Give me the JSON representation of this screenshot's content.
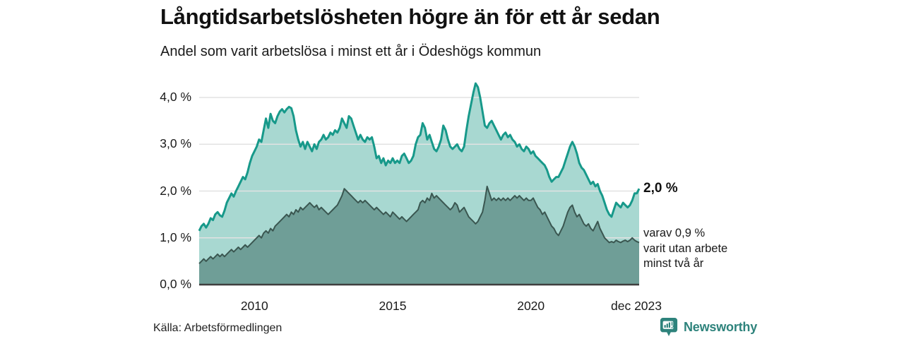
{
  "header": {
    "title": "Långtidsarbetslösheten högre än för ett år sedan",
    "subtitle": "Andel som varit arbetslösa i minst ett år i Ödeshögs kommun"
  },
  "annotations": {
    "latest_total": "2,0 %",
    "secondary_note": "varav 0,9 %\nvarit utan arbete\nminst två år"
  },
  "footer": {
    "source": "Källa: Arbetsförmedlingen",
    "brand": "Newsworthy"
  },
  "colors": {
    "series1_line": "#17998a",
    "series1_fill": "#a8d8d1",
    "series2_line": "#3a5650",
    "series2_fill": "#6f9e97",
    "grid": "#e2e2e2",
    "baseline": "#3f3f3f",
    "brand_teal": "#2e837c"
  },
  "chart_data": {
    "type": "area",
    "title": "Långtidsarbetslösheten högre än för ett år sedan",
    "subtitle": "Andel som varit arbetslösa i minst ett år i Ödeshögs kommun",
    "xlabel": "",
    "ylabel": "",
    "grid": true,
    "legend": "none",
    "x_start_year": 2008,
    "x_end_label": "dec 2023",
    "points_per_year": 12,
    "ylim": [
      0,
      4.5
    ],
    "y_ticks": [
      {
        "label": "0,0 %",
        "value": 0
      },
      {
        "label": "1,0 %",
        "value": 1
      },
      {
        "label": "2,0 %",
        "value": 2
      },
      {
        "label": "3,0 %",
        "value": 3
      },
      {
        "label": "4,0 %",
        "value": 4
      }
    ],
    "x_ticks": [
      {
        "label": "2010",
        "year": 2010.0
      },
      {
        "label": "2015",
        "year": 2015.0
      },
      {
        "label": "2020",
        "year": 2020.0
      },
      {
        "label": "dec 2023",
        "year": 2023.917
      }
    ],
    "series": [
      {
        "name": "Arbetslösa minst ett år",
        "end_label": "2,0 %",
        "color": "#17998a",
        "fill": "#a8d8d1",
        "line_width": 3,
        "values": [
          1.15,
          1.25,
          1.3,
          1.22,
          1.3,
          1.42,
          1.38,
          1.5,
          1.55,
          1.48,
          1.45,
          1.58,
          1.75,
          1.85,
          1.95,
          1.88,
          2.0,
          2.1,
          2.2,
          2.3,
          2.25,
          2.4,
          2.6,
          2.75,
          2.85,
          2.95,
          3.1,
          3.05,
          3.3,
          3.55,
          3.35,
          3.65,
          3.5,
          3.45,
          3.6,
          3.7,
          3.75,
          3.68,
          3.75,
          3.8,
          3.77,
          3.6,
          3.3,
          3.1,
          2.95,
          3.05,
          2.9,
          3.05,
          2.95,
          2.85,
          3.0,
          2.9,
          3.05,
          3.1,
          3.2,
          3.1,
          3.15,
          3.25,
          3.2,
          3.3,
          3.25,
          3.35,
          3.55,
          3.45,
          3.35,
          3.6,
          3.55,
          3.4,
          3.25,
          3.1,
          3.2,
          3.1,
          3.05,
          3.15,
          3.1,
          3.15,
          2.95,
          2.7,
          2.75,
          2.6,
          2.7,
          2.55,
          2.65,
          2.6,
          2.7,
          2.6,
          2.65,
          2.6,
          2.75,
          2.8,
          2.7,
          2.6,
          2.65,
          2.75,
          3.0,
          3.15,
          3.2,
          3.45,
          3.35,
          3.1,
          3.2,
          3.05,
          2.9,
          2.85,
          2.95,
          3.1,
          3.4,
          3.3,
          3.1,
          2.95,
          2.9,
          2.95,
          3.0,
          2.9,
          2.85,
          2.95,
          3.3,
          3.6,
          3.85,
          4.1,
          4.3,
          4.22,
          4.0,
          3.7,
          3.4,
          3.35,
          3.45,
          3.5,
          3.4,
          3.3,
          3.2,
          3.1,
          3.2,
          3.25,
          3.15,
          3.2,
          3.1,
          3.05,
          2.95,
          3.0,
          2.9,
          2.85,
          2.95,
          2.9,
          2.8,
          2.85,
          2.75,
          2.7,
          2.65,
          2.6,
          2.55,
          2.45,
          2.3,
          2.2,
          2.25,
          2.3,
          2.3,
          2.4,
          2.5,
          2.65,
          2.8,
          2.95,
          3.05,
          2.95,
          2.8,
          2.6,
          2.5,
          2.45,
          2.35,
          2.25,
          2.15,
          2.2,
          2.1,
          2.15,
          2.0,
          1.9,
          1.75,
          1.6,
          1.5,
          1.45,
          1.6,
          1.75,
          1.7,
          1.65,
          1.75,
          1.7,
          1.65,
          1.7,
          1.8,
          1.95,
          1.95,
          2.05
        ]
      },
      {
        "name": "Utan arbete minst två år",
        "end_label": "0,9 %",
        "color": "#3a5650",
        "fill": "#6f9e97",
        "line_width": 2,
        "values": [
          0.45,
          0.5,
          0.55,
          0.5,
          0.55,
          0.6,
          0.55,
          0.6,
          0.65,
          0.6,
          0.65,
          0.6,
          0.65,
          0.7,
          0.75,
          0.7,
          0.75,
          0.8,
          0.75,
          0.8,
          0.85,
          0.8,
          0.85,
          0.9,
          0.95,
          1.0,
          1.05,
          1.0,
          1.1,
          1.15,
          1.1,
          1.2,
          1.15,
          1.25,
          1.3,
          1.35,
          1.4,
          1.45,
          1.5,
          1.45,
          1.55,
          1.5,
          1.6,
          1.55,
          1.65,
          1.6,
          1.65,
          1.7,
          1.75,
          1.7,
          1.65,
          1.7,
          1.6,
          1.65,
          1.6,
          1.55,
          1.5,
          1.55,
          1.6,
          1.65,
          1.7,
          1.8,
          1.9,
          2.05,
          2.0,
          1.95,
          1.9,
          1.85,
          1.8,
          1.75,
          1.8,
          1.75,
          1.8,
          1.75,
          1.7,
          1.65,
          1.6,
          1.65,
          1.6,
          1.55,
          1.5,
          1.55,
          1.5,
          1.45,
          1.55,
          1.5,
          1.45,
          1.4,
          1.45,
          1.4,
          1.35,
          1.4,
          1.45,
          1.5,
          1.55,
          1.6,
          1.75,
          1.8,
          1.75,
          1.85,
          1.8,
          1.95,
          1.85,
          1.9,
          1.85,
          1.8,
          1.75,
          1.7,
          1.65,
          1.6,
          1.65,
          1.75,
          1.7,
          1.55,
          1.6,
          1.65,
          1.55,
          1.45,
          1.4,
          1.35,
          1.3,
          1.35,
          1.45,
          1.55,
          1.8,
          2.1,
          1.95,
          1.8,
          1.85,
          1.8,
          1.85,
          1.8,
          1.85,
          1.8,
          1.85,
          1.8,
          1.85,
          1.9,
          1.85,
          1.9,
          1.85,
          1.8,
          1.85,
          1.8,
          1.8,
          1.85,
          1.75,
          1.65,
          1.6,
          1.5,
          1.55,
          1.45,
          1.35,
          1.25,
          1.2,
          1.1,
          1.05,
          1.15,
          1.25,
          1.4,
          1.55,
          1.65,
          1.7,
          1.55,
          1.45,
          1.5,
          1.4,
          1.3,
          1.25,
          1.3,
          1.2,
          1.15,
          1.25,
          1.35,
          1.2,
          1.1,
          1.0,
          0.95,
          0.9,
          0.92,
          0.9,
          0.95,
          0.92,
          0.9,
          0.93,
          0.95,
          0.92,
          0.95,
          1.0,
          0.95,
          0.92,
          0.9
        ]
      }
    ]
  }
}
